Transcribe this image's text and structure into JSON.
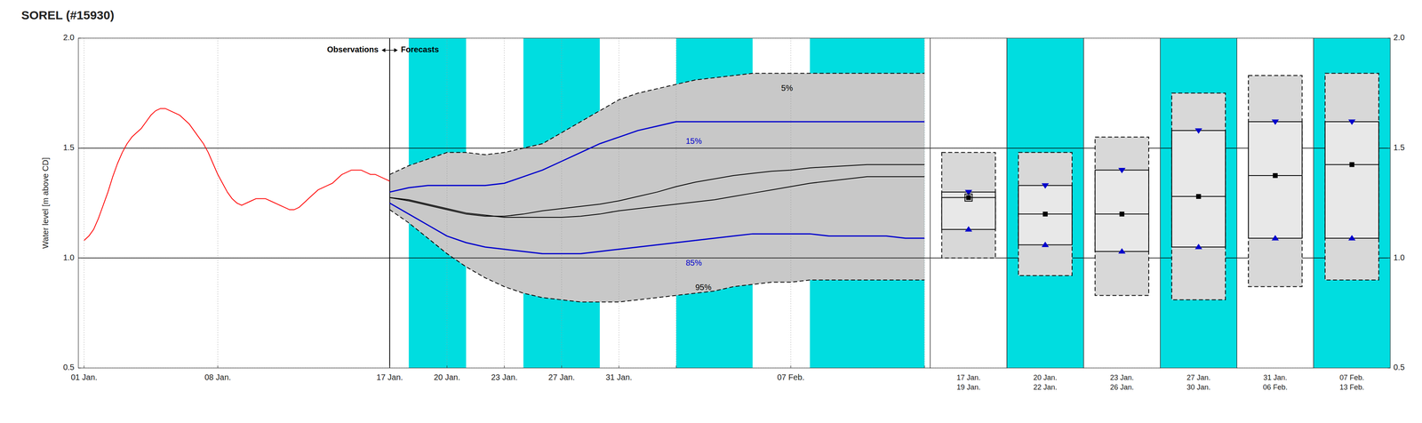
{
  "chart_data": [
    {
      "type": "line",
      "title": "SOREL (#15930)",
      "ylabel": "Water level [m above CD]",
      "xlim": [
        -0.3,
        44.3
      ],
      "xticks": [
        {
          "value": 0,
          "label": "01 Jan."
        },
        {
          "value": 7,
          "label": "08 Jan."
        },
        {
          "value": 16,
          "label": "17 Jan."
        },
        {
          "value": 19,
          "label": "20 Jan."
        },
        {
          "value": 22,
          "label": "23 Jan."
        },
        {
          "value": 25,
          "label": "27 Jan."
        },
        {
          "value": 28,
          "label": "31 Jan."
        },
        {
          "value": 31,
          "label": null
        },
        {
          "value": 37,
          "label": "07 Feb."
        },
        {
          "value": 44,
          "label": null
        }
      ],
      "ylim": [
        0.5,
        2
      ],
      "yticks": [
        0.5,
        {
          "value": 1,
          "label": "1.0"
        },
        1.5,
        {
          "value": 2,
          "label": "2.0"
        }
      ],
      "grid": true,
      "hlines": [
        1,
        1.5
      ],
      "vline": 16,
      "bands": [
        [
          17,
          20
        ],
        [
          23,
          27
        ],
        [
          31,
          35
        ],
        [
          38,
          44
        ]
      ],
      "band_color": "#00dde0",
      "fill_between": {
        "upper": "5%",
        "lower": "95%",
        "color": "#c8c8c8"
      },
      "annotation": {
        "left_text": "Observations",
        "right_text": "Forecasts",
        "x": 16,
        "y": 1.945
      },
      "series": [
        {
          "color": "#ff0000",
          "line_style": "solid",
          "x": [
            0,
            0.25,
            0.5,
            0.75,
            1,
            1.25,
            1.5,
            1.75,
            2,
            2.25,
            2.5,
            2.75,
            3,
            3.25,
            3.5,
            3.75,
            4,
            4.25,
            4.5,
            4.75,
            5,
            5.25,
            5.5,
            5.75,
            6,
            6.25,
            6.5,
            6.75,
            7,
            7.25,
            7.5,
            7.75,
            8,
            8.25,
            8.5,
            8.75,
            9,
            9.25,
            9.5,
            9.75,
            10,
            10.25,
            10.5,
            10.75,
            11,
            11.25,
            11.5,
            11.75,
            12,
            12.25,
            12.5,
            12.75,
            13,
            13.25,
            13.5,
            13.75,
            14,
            14.25,
            14.5,
            14.75,
            15,
            15.25,
            15.5,
            15.75,
            16
          ],
          "values": [
            1.08,
            1.1,
            1.13,
            1.18,
            1.24,
            1.3,
            1.37,
            1.43,
            1.48,
            1.52,
            1.55,
            1.57,
            1.59,
            1.62,
            1.65,
            1.67,
            1.68,
            1.68,
            1.67,
            1.66,
            1.65,
            1.63,
            1.61,
            1.58,
            1.55,
            1.52,
            1.48,
            1.43,
            1.38,
            1.34,
            1.3,
            1.27,
            1.25,
            1.24,
            1.25,
            1.26,
            1.27,
            1.27,
            1.27,
            1.26,
            1.25,
            1.24,
            1.23,
            1.22,
            1.22,
            1.23,
            1.25,
            1.27,
            1.29,
            1.31,
            1.32,
            1.33,
            1.34,
            1.36,
            1.38,
            1.39,
            1.4,
            1.4,
            1.4,
            1.39,
            1.38,
            1.38,
            1.37,
            1.36,
            1.35
          ]
        },
        {
          "name": "5%",
          "color": "#000000",
          "line_style": "dashed",
          "label_x": 36.5,
          "label_y": 1.76,
          "x": [
            16,
            17,
            18,
            19,
            20,
            21,
            22,
            23,
            24,
            25,
            26,
            27,
            28,
            29,
            30,
            31,
            32,
            33,
            34,
            35,
            36,
            37,
            38,
            39,
            40,
            41,
            42,
            43,
            44
          ],
          "values": [
            1.38,
            1.42,
            1.45,
            1.48,
            1.48,
            1.47,
            1.48,
            1.5,
            1.52,
            1.57,
            1.62,
            1.67,
            1.72,
            1.75,
            1.77,
            1.79,
            1.81,
            1.82,
            1.83,
            1.84,
            1.84,
            1.84,
            1.84,
            1.84,
            1.84,
            1.84,
            1.84,
            1.84,
            1.84
          ]
        },
        {
          "name": "15%",
          "color": "#0000cc",
          "line_style": "solid",
          "label_x": 31.5,
          "label_y": 1.52,
          "x": [
            16,
            17,
            18,
            19,
            20,
            21,
            22,
            23,
            24,
            25,
            26,
            27,
            28,
            29,
            30,
            31,
            32,
            33,
            34,
            35,
            36,
            37,
            38,
            39,
            40,
            41,
            42,
            43,
            44
          ],
          "values": [
            1.3,
            1.32,
            1.33,
            1.33,
            1.33,
            1.33,
            1.34,
            1.37,
            1.4,
            1.44,
            1.48,
            1.52,
            1.55,
            1.58,
            1.6,
            1.62,
            1.62,
            1.62,
            1.62,
            1.62,
            1.62,
            1.62,
            1.62,
            1.62,
            1.62,
            1.62,
            1.62,
            1.62,
            1.62
          ]
        },
        {
          "name": "85%",
          "color": "#0000cc",
          "line_style": "solid",
          "label_x": 31.5,
          "label_y": 0.965,
          "x": [
            16,
            17,
            18,
            19,
            20,
            21,
            22,
            23,
            24,
            25,
            26,
            27,
            28,
            29,
            30,
            31,
            32,
            33,
            34,
            35,
            36,
            37,
            38,
            39,
            40,
            41,
            42,
            43,
            44
          ],
          "values": [
            1.25,
            1.2,
            1.15,
            1.1,
            1.07,
            1.05,
            1.04,
            1.03,
            1.02,
            1.02,
            1.02,
            1.03,
            1.04,
            1.05,
            1.06,
            1.07,
            1.08,
            1.09,
            1.1,
            1.11,
            1.11,
            1.11,
            1.11,
            1.1,
            1.1,
            1.1,
            1.1,
            1.09,
            1.09
          ]
        },
        {
          "name": "95%",
          "color": "#000000",
          "line_style": "dashed",
          "label_x": 32.0,
          "label_y": 0.855,
          "x": [
            16,
            17,
            18,
            19,
            20,
            21,
            22,
            23,
            24,
            25,
            26,
            27,
            28,
            29,
            30,
            31,
            32,
            33,
            34,
            35,
            36,
            37,
            38,
            39,
            40,
            41,
            42,
            43,
            44
          ],
          "values": [
            1.22,
            1.16,
            1.09,
            1.02,
            0.96,
            0.91,
            0.87,
            0.84,
            0.82,
            0.81,
            0.8,
            0.8,
            0.8,
            0.81,
            0.82,
            0.83,
            0.84,
            0.85,
            0.87,
            0.88,
            0.89,
            0.89,
            0.9,
            0.9,
            0.9,
            0.9,
            0.9,
            0.9,
            0.9
          ]
        },
        {
          "color": "#000000",
          "line_style": "solid",
          "x": [
            16,
            17,
            18,
            19,
            20,
            21,
            22,
            23,
            24,
            25,
            26,
            27,
            28,
            29,
            30,
            31,
            32,
            33,
            34,
            35,
            36,
            37,
            38,
            39,
            40,
            41,
            42,
            43,
            44
          ],
          "values": [
            1.275,
            1.26,
            1.24,
            1.22,
            1.2,
            1.19,
            1.19,
            1.2,
            1.215,
            1.225,
            1.235,
            1.245,
            1.26,
            1.28,
            1.3,
            1.325,
            1.345,
            1.36,
            1.375,
            1.385,
            1.395,
            1.4,
            1.41,
            1.415,
            1.42,
            1.425,
            1.425,
            1.425,
            1.425
          ]
        },
        {
          "color": "#000000",
          "line_style": "solid",
          "x": [
            16,
            17,
            18,
            19,
            20,
            21,
            22,
            23,
            24,
            25,
            26,
            27,
            28,
            29,
            30,
            31,
            32,
            33,
            34,
            35,
            36,
            37,
            38,
            39,
            40,
            41,
            42,
            43,
            44
          ],
          "values": [
            1.275,
            1.265,
            1.245,
            1.225,
            1.205,
            1.195,
            1.185,
            1.185,
            1.185,
            1.185,
            1.19,
            1.2,
            1.215,
            1.225,
            1.235,
            1.245,
            1.255,
            1.265,
            1.28,
            1.295,
            1.31,
            1.325,
            1.34,
            1.35,
            1.36,
            1.37,
            1.37,
            1.37,
            1.37
          ]
        }
      ]
    },
    {
      "type": "box",
      "categories": [
        "17 Jan.\n19 Jan.",
        "20 Jan.\n22 Jan.",
        "23 Jan.\n26 Jan.",
        "27 Jan.\n30 Jan.",
        "31 Jan.\n06 Feb.",
        "07 Feb.\n13 Feb."
      ],
      "ylim": [
        0.5,
        2
      ],
      "yticks": [
        0.5,
        {
          "value": 1,
          "label": "1.0"
        },
        1.5,
        {
          "value": 2,
          "label": "2.0"
        }
      ],
      "grid": true,
      "hlines": [
        1,
        1.5
      ],
      "band_color": "#00dde0",
      "shaded": [
        false,
        true,
        false,
        true,
        false,
        true
      ],
      "fill_color": "#d8d8d8",
      "inner_fill_color": "#e8e8e8",
      "marker_color": "#0000cc",
      "p5": [
        1.48,
        1.48,
        1.55,
        1.75,
        1.83,
        1.84
      ],
      "p15": [
        1.3,
        1.33,
        1.4,
        1.58,
        1.62,
        1.62
      ],
      "p50": [
        1.275,
        1.2,
        1.2,
        1.28,
        1.375,
        1.425
      ],
      "p85": [
        1.13,
        1.06,
        1.03,
        1.05,
        1.09,
        1.09
      ],
      "p95": [
        1.0,
        0.92,
        0.83,
        0.81,
        0.87,
        0.9
      ],
      "obs": [
        1.275,
        null,
        null,
        null,
        null,
        null
      ]
    }
  ]
}
